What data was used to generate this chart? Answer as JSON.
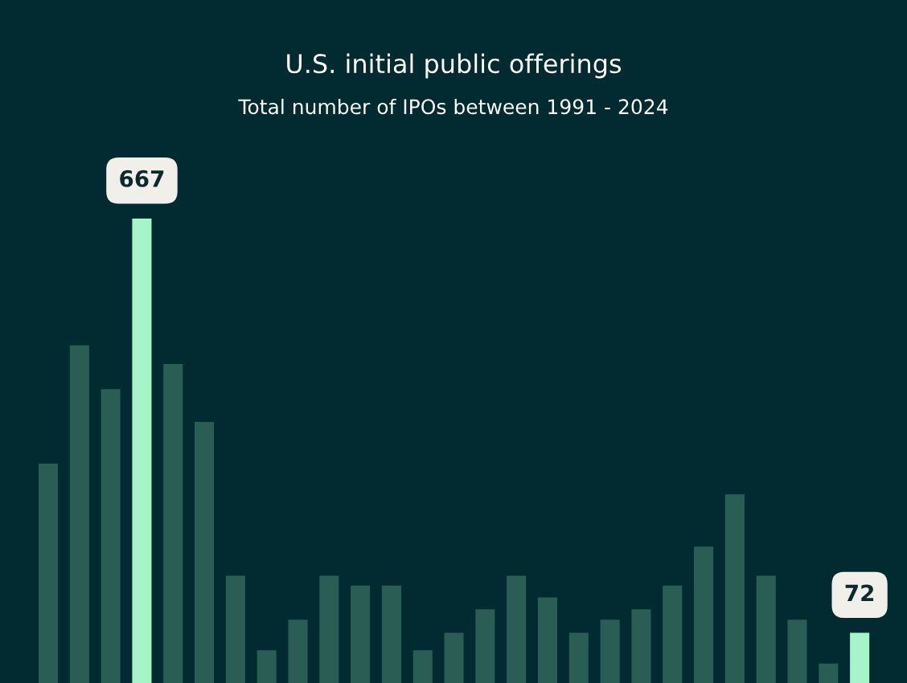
{
  "chart_data": {
    "type": "bar",
    "title": "U.S. initial public offerings",
    "subtitle": "Total number of IPOs between 1991 - 2024",
    "categories": [
      null,
      null,
      null,
      null,
      null,
      null,
      null,
      null,
      null,
      null,
      null,
      null,
      null,
      null,
      null,
      null,
      null,
      null,
      null,
      null,
      null,
      null,
      null,
      null,
      null,
      null,
      null
    ],
    "values": [
      315,
      485,
      422,
      667,
      458,
      375,
      154,
      47,
      91,
      154,
      140,
      140,
      47,
      72,
      106,
      154,
      123,
      72,
      91,
      106,
      140,
      196,
      271,
      154,
      91,
      28,
      72
    ],
    "colors": [
      "#2a5e55",
      "#2a5e55",
      "#2a5e55",
      "#a6f5c8",
      "#2a5e55",
      "#2a5e55",
      "#2a5e55",
      "#2a5e55",
      "#2a5e55",
      "#2a5e55",
      "#2a5e55",
      "#2a5e55",
      "#2a5e55",
      "#2a5e55",
      "#2a5e55",
      "#2a5e55",
      "#2a5e55",
      "#2a5e55",
      "#2a5e55",
      "#2a5e55",
      "#2a5e55",
      "#2a5e55",
      "#2a5e55",
      "#2a5e55",
      "#2a5e55",
      "#2a5e55",
      "#a6f5c8"
    ],
    "value_labels": [
      null,
      null,
      null,
      "667",
      null,
      null,
      null,
      null,
      null,
      null,
      null,
      null,
      null,
      null,
      null,
      null,
      null,
      null,
      null,
      null,
      null,
      null,
      null,
      null,
      null,
      null,
      "72"
    ],
    "grid": false,
    "legend": false
  }
}
